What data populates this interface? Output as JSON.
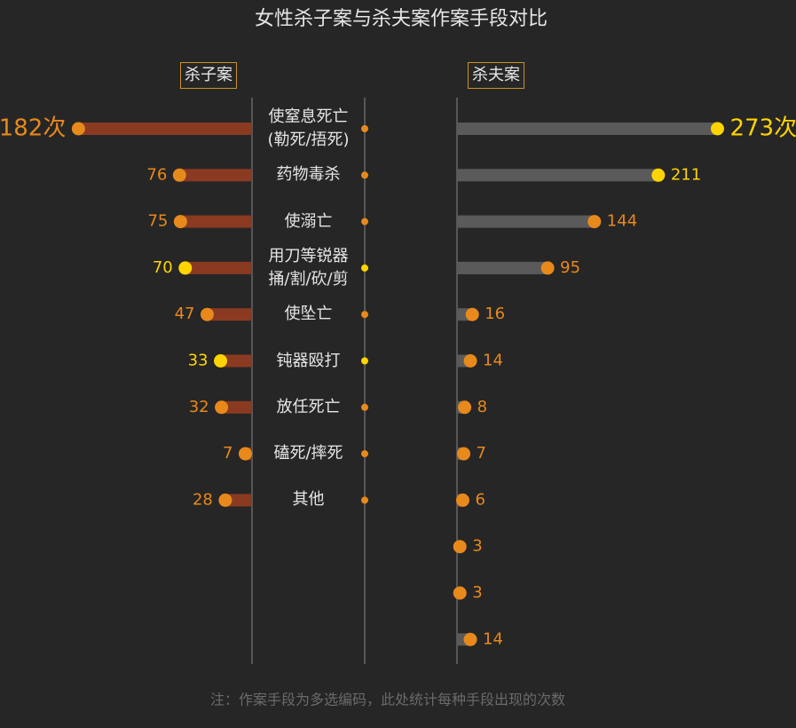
{
  "chart_data": {
    "type": "lollipop",
    "title": "女性杀子案与杀夫案作案手段对比",
    "note": "注：作案手段为多选编码，此处统计每种手段出现的次数",
    "categories": [
      "使窒息死亡\n(勒死/捂死)",
      "药物毒杀",
      "使溺亡",
      "用刀等锐器\n捅/割/砍/剪",
      "使坠亡",
      "钝器殴打",
      "放任死亡",
      "磕死/摔死",
      "其他",
      null,
      null,
      null
    ],
    "series": [
      {
        "name": "杀子案",
        "color": "#8b3a22",
        "values": [
          182,
          76,
          75,
          70,
          47,
          33,
          32,
          7,
          28,
          null,
          null,
          null
        ],
        "value_labels": [
          "182次",
          "76",
          "75",
          "70",
          "47",
          "33",
          "32",
          "7",
          "28",
          null,
          null,
          null
        ],
        "point_colors": [
          "#e8891c",
          "#e8891c",
          "#e8891c",
          "#ffd400",
          "#e8891c",
          "#ffd400",
          "#e8891c",
          "#e8891c",
          "#e8891c",
          null,
          null,
          null
        ]
      },
      {
        "name": "杀夫案",
        "color": "#5a5a5a",
        "values": [
          273,
          211,
          144,
          95,
          16,
          14,
          8,
          7,
          6,
          3,
          3,
          14
        ],
        "value_labels": [
          "273次",
          "211",
          "144",
          "95",
          "16",
          "14",
          "8",
          "7",
          "6",
          "3",
          "3",
          "14"
        ],
        "point_colors": [
          "#ffd400",
          "#ffd400",
          "#e8891c",
          "#e8891c",
          "#e8891c",
          "#e8891c",
          "#e8891c",
          "#e8891c",
          "#e8891c",
          "#e8891c",
          "#e8891c",
          "#e8891c"
        ]
      }
    ]
  }
}
